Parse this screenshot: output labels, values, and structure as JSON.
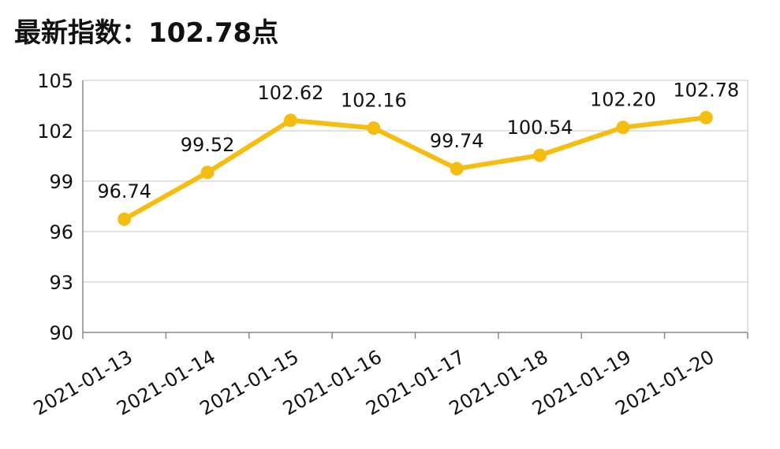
{
  "title": "最新指数：102.78点",
  "chart_data": {
    "type": "line",
    "title": "最新指数：102.78点",
    "xlabel": "",
    "ylabel": "",
    "categories": [
      "2021-01-13",
      "2021-01-14",
      "2021-01-15",
      "2021-01-16",
      "2021-01-17",
      "2021-01-18",
      "2021-01-19",
      "2021-01-20"
    ],
    "series": [
      {
        "values": [
          96.74,
          99.52,
          102.62,
          102.16,
          99.74,
          100.54,
          102.2,
          102.78
        ],
        "labels": [
          "96.74",
          "99.52",
          "102.62",
          "102.16",
          "99.74",
          "100.54",
          "102.20",
          "102.78"
        ],
        "color": "#f5bd10"
      }
    ],
    "ylim": [
      90,
      105
    ],
    "yticks": [
      "90",
      "93",
      "96",
      "99",
      "102",
      "105"
    ],
    "grid": true,
    "legend": "none",
    "axis_color": "#888888",
    "grid_color": "#d9d9d9"
  }
}
